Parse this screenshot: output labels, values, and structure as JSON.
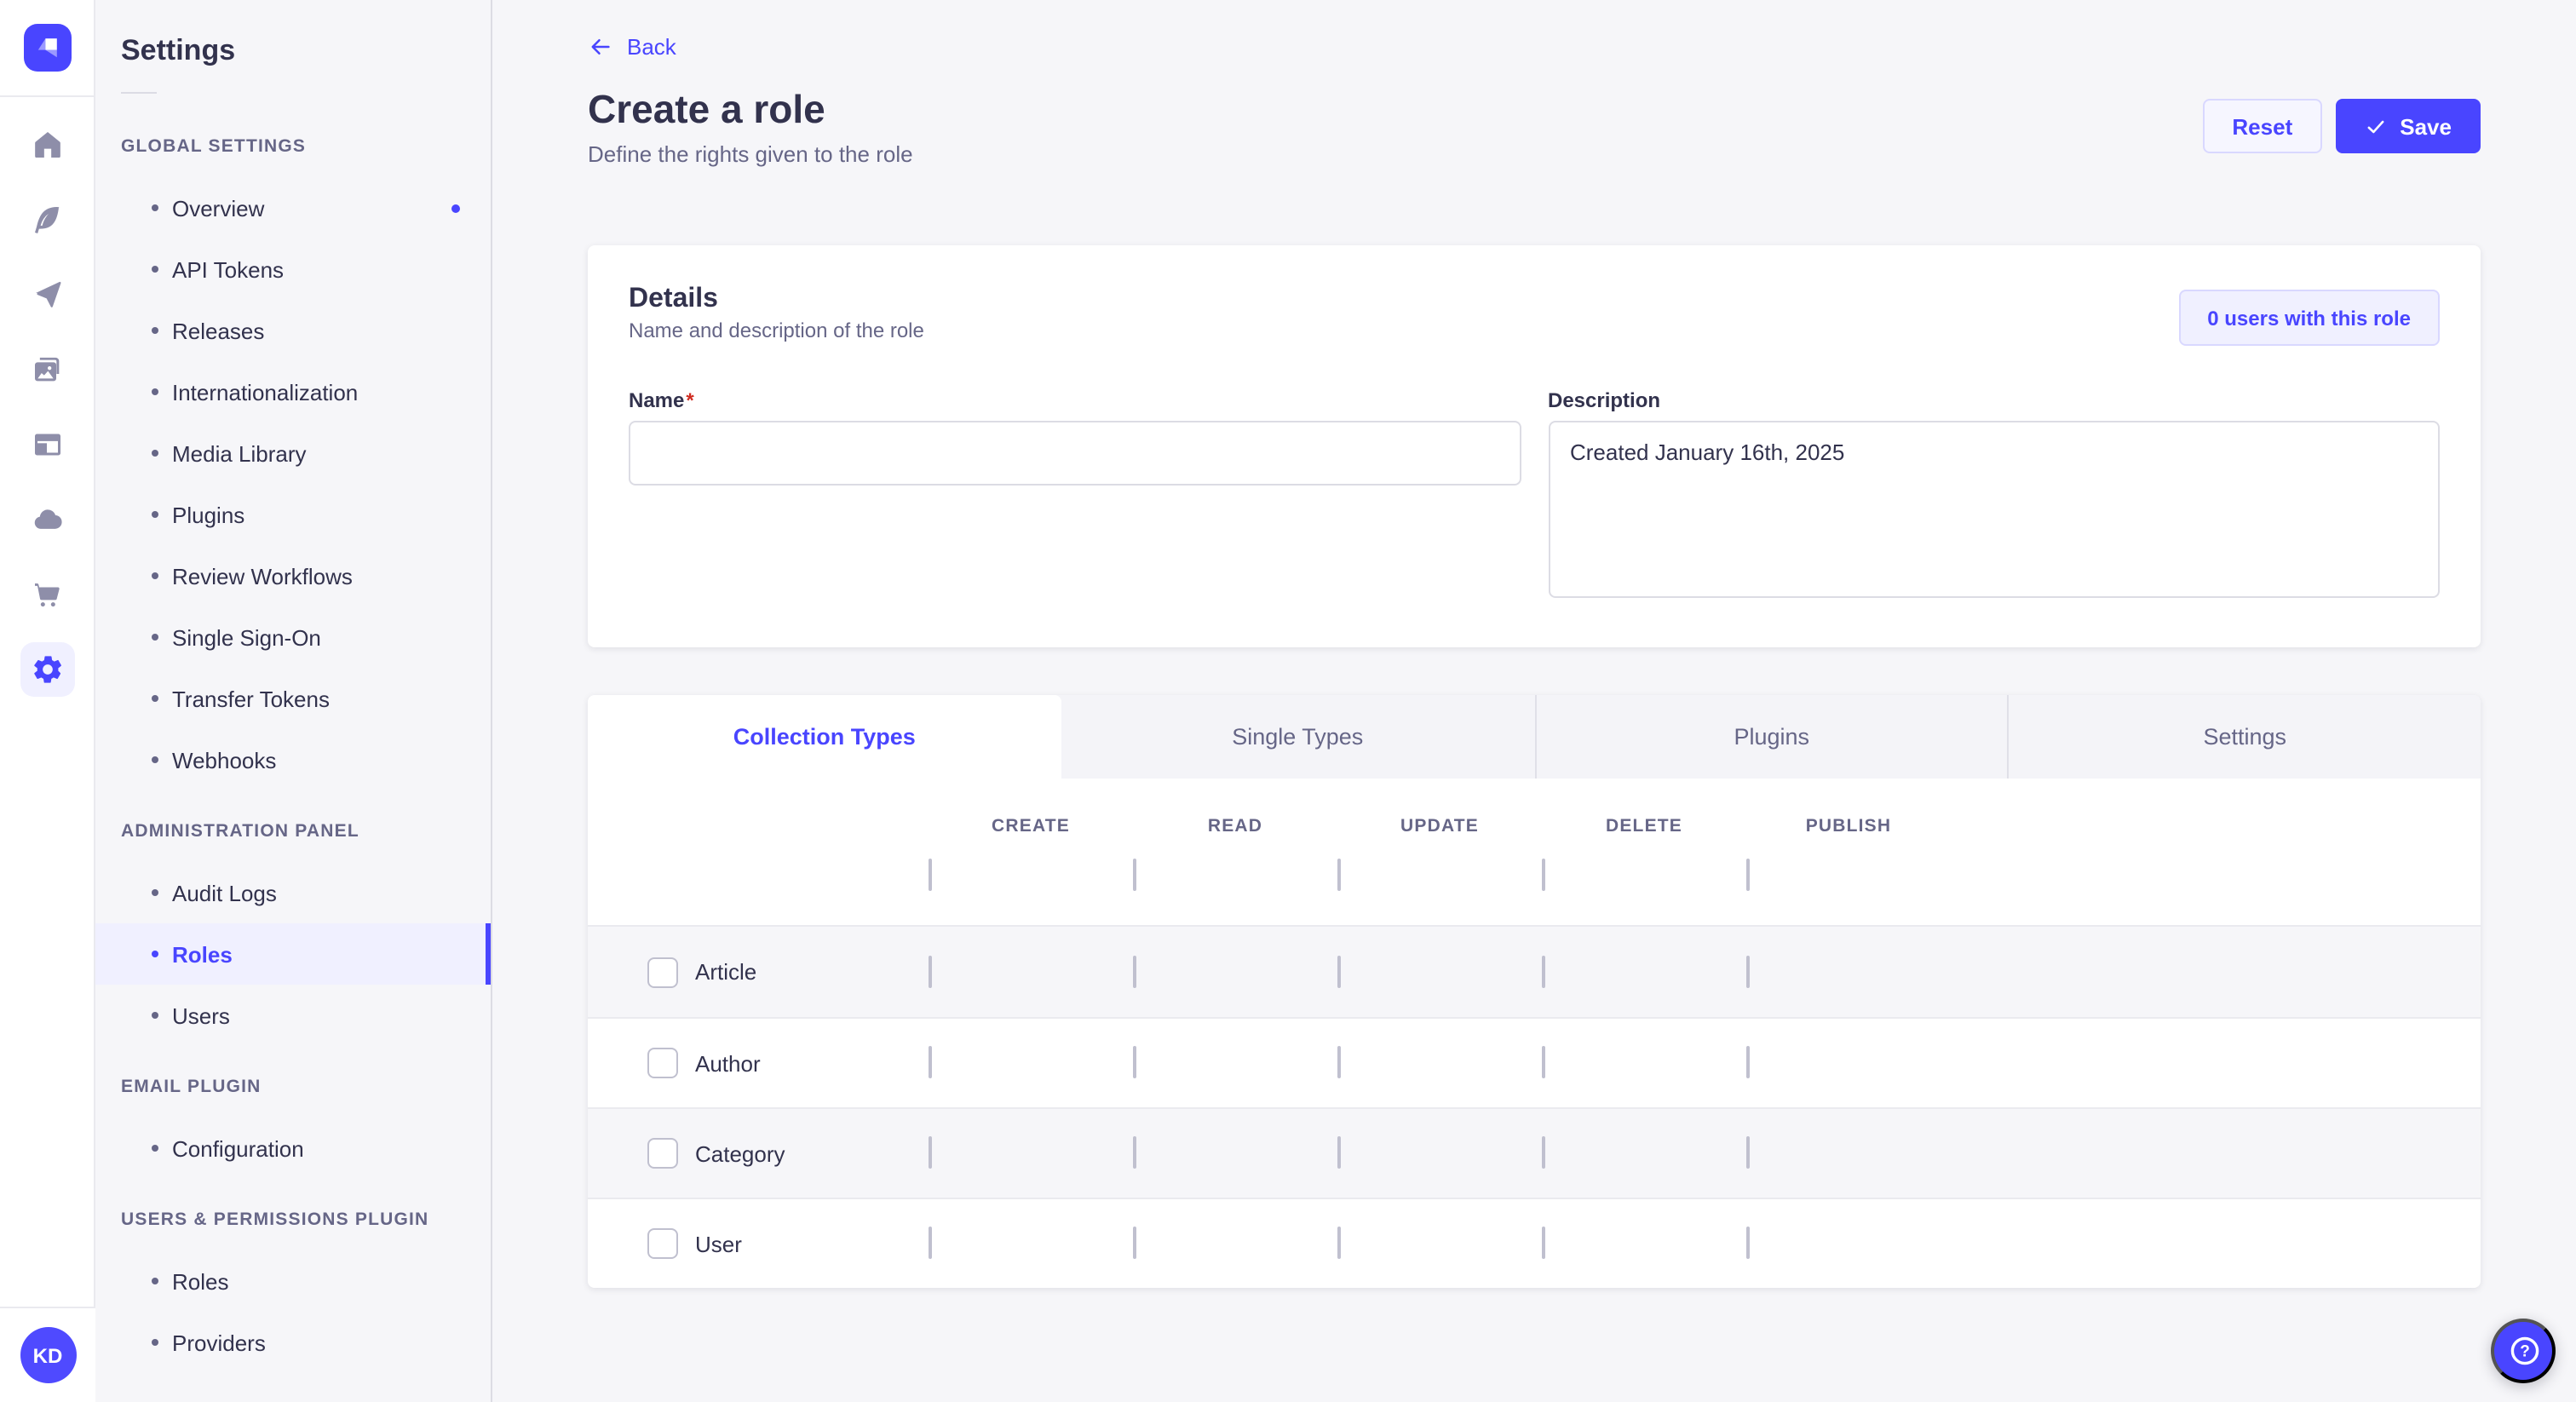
{
  "brand": {
    "logo_icon": "strapi-logo-icon"
  },
  "nav_rail": {
    "icons": [
      {
        "name": "home-icon"
      },
      {
        "name": "feather-icon"
      },
      {
        "name": "send-icon"
      },
      {
        "name": "media-icon"
      },
      {
        "name": "layout-icon"
      },
      {
        "name": "cloud-icon"
      },
      {
        "name": "cart-icon"
      },
      {
        "name": "gear-icon",
        "active": true
      }
    ],
    "avatar_initials": "KD"
  },
  "settings_nav": {
    "title": "Settings",
    "sections": [
      {
        "label": "GLOBAL SETTINGS",
        "items": [
          {
            "label": "Overview",
            "notification_dot": true
          },
          {
            "label": "API Tokens"
          },
          {
            "label": "Releases"
          },
          {
            "label": "Internationalization"
          },
          {
            "label": "Media Library"
          },
          {
            "label": "Plugins"
          },
          {
            "label": "Review Workflows"
          },
          {
            "label": "Single Sign-On"
          },
          {
            "label": "Transfer Tokens"
          },
          {
            "label": "Webhooks"
          }
        ]
      },
      {
        "label": "ADMINISTRATION PANEL",
        "items": [
          {
            "label": "Audit Logs"
          },
          {
            "label": "Roles",
            "active": true
          },
          {
            "label": "Users"
          }
        ]
      },
      {
        "label": "EMAIL PLUGIN",
        "items": [
          {
            "label": "Configuration"
          }
        ]
      },
      {
        "label": "USERS & PERMISSIONS PLUGIN",
        "items": [
          {
            "label": "Roles"
          },
          {
            "label": "Providers"
          }
        ]
      }
    ]
  },
  "header": {
    "back_label": "Back",
    "title": "Create a role",
    "subtitle": "Define the rights given to the role",
    "reset_label": "Reset",
    "save_label": "Save"
  },
  "details_card": {
    "title": "Details",
    "subtitle": "Name and description of the role",
    "users_button_label": "0 users with this role",
    "name_label": "Name",
    "required_mark": "*",
    "name_value": "",
    "description_label": "Description",
    "description_value": "Created January 16th, 2025"
  },
  "permissions": {
    "tabs": [
      {
        "label": "Collection Types",
        "active": true
      },
      {
        "label": "Single Types"
      },
      {
        "label": "Plugins"
      },
      {
        "label": "Settings"
      }
    ],
    "columns": [
      "CREATE",
      "READ",
      "UPDATE",
      "DELETE",
      "PUBLISH"
    ],
    "rows": [
      {
        "label": "Article",
        "checked": [
          false,
          false,
          false,
          false,
          false
        ]
      },
      {
        "label": "Author",
        "checked": [
          false,
          false,
          false,
          false,
          false
        ]
      },
      {
        "label": "Category",
        "checked": [
          false,
          false,
          false,
          false,
          false
        ]
      },
      {
        "label": "User",
        "checked": [
          false,
          false,
          false,
          false,
          false
        ]
      }
    ],
    "select_all_checked": [
      false,
      false,
      false,
      false,
      false
    ]
  },
  "help": {
    "icon": "question-mark-icon"
  },
  "colors": {
    "primary": "#4945ff",
    "primary_light_bg": "#f0f0ff",
    "primary_border": "#d9d8ff",
    "page_bg": "#f6f6f9",
    "text": "#32324d",
    "text_muted": "#666687",
    "icon_gray": "#8e8ea9",
    "divider": "#eaeaef",
    "input_border": "#dcdce4",
    "checkbox_border": "#c0c0cf",
    "required_red": "#d02b20"
  }
}
